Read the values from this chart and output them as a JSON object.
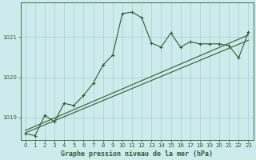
{
  "title": "Graphe pression niveau de la mer (hPa)",
  "background_color": "#cdeaec",
  "line_color": "#2d5f2d",
  "grid_color": "#aed4d6",
  "xlim": [
    -0.5,
    23.5
  ],
  "ylim": [
    1018.45,
    1021.85
  ],
  "yticks": [
    1019,
    1020,
    1021
  ],
  "xticks": [
    0,
    1,
    2,
    3,
    4,
    5,
    6,
    7,
    8,
    9,
    10,
    11,
    12,
    13,
    14,
    15,
    16,
    17,
    18,
    19,
    20,
    21,
    22,
    23
  ],
  "series1_x": [
    0,
    1,
    2,
    3,
    4,
    5,
    6,
    7,
    8,
    9,
    10,
    11,
    12,
    13,
    14,
    15,
    16,
    17,
    18,
    19,
    20,
    21,
    22,
    23
  ],
  "series1_y": [
    1018.6,
    1018.55,
    1019.05,
    1018.9,
    1019.35,
    1019.3,
    1019.55,
    1019.85,
    1020.3,
    1020.55,
    1021.58,
    1021.62,
    1021.48,
    1020.85,
    1020.75,
    1021.1,
    1020.75,
    1020.88,
    1020.83,
    1020.83,
    1020.83,
    1020.78,
    1020.48,
    1021.12
  ],
  "series2_x": [
    0,
    23
  ],
  "series2_y": [
    1018.68,
    1021.05
  ],
  "series3_x": [
    0,
    23
  ],
  "series3_y": [
    1018.62,
    1020.92
  ]
}
